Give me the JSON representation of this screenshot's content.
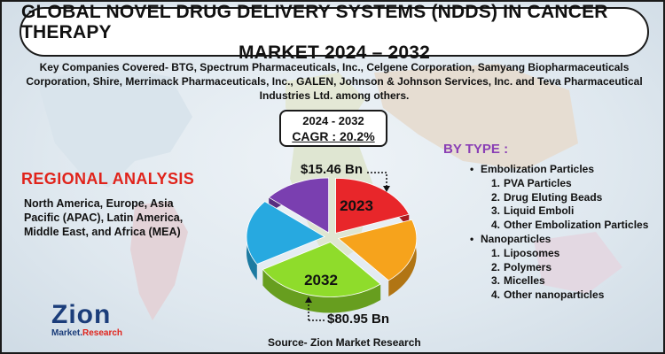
{
  "header": {
    "title_line1": "GLOBAL NOVEL DRUG DELIVERY SYSTEMS (NDDS) IN CANCER THERAPY",
    "title_line2": "MARKET 2024 – 2032"
  },
  "companies_text": "Key Companies Covered- BTG, Spectrum Pharmaceuticals, Inc., Celgene Corporation, Samyang Biopharmaceuticals Corporation, Shire, Merrimack Pharmaceuticals, Inc., GALEN, Johnson & Johnson Services, Inc. and Teva Pharmaceutical Industries Ltd. among others.",
  "cagr": {
    "period": "2024 - 2032",
    "value": "CAGR : 20.2%"
  },
  "regional": {
    "title": "REGIONAL ANALYSIS",
    "text": "North America, Europe, Asia Pacific (APAC), Latin America, Middle East, and Africa (MEA)"
  },
  "by_type": {
    "title": "BY TYPE :",
    "categories": [
      {
        "name": "Embolization Particles",
        "items": [
          "PVA Particles",
          "Drug Eluting Beads",
          "Liquid Emboli",
          "Other Embolization Particles"
        ]
      },
      {
        "name": "Nanoparticles",
        "items": [
          "Liposomes",
          "Polymers",
          "Micelles",
          "Other nanoparticles"
        ]
      }
    ]
  },
  "source": "Source- Zion Market Research",
  "logo": {
    "main": "Zion",
    "sub_left": "Market.",
    "sub_right": "Research"
  },
  "chart_data": {
    "type": "pie",
    "values": [
      {
        "year": "2023",
        "market_value": "$15.46 Bn"
      },
      {
        "year": "2032",
        "market_value": "$80.95 Bn"
      }
    ],
    "slices": [
      {
        "label": "2023",
        "color": "#e8262a"
      },
      {
        "label": "",
        "color": "#f6a31c"
      },
      {
        "label": "2032",
        "color": "#8fdc2b"
      },
      {
        "label": "",
        "color": "#27a9e0"
      },
      {
        "label": "",
        "color": "#7a3fb0"
      }
    ]
  },
  "colors": {
    "accent_red": "#e0231b",
    "accent_purple": "#8a3fb5",
    "logo_blue": "#1b3d7a"
  }
}
